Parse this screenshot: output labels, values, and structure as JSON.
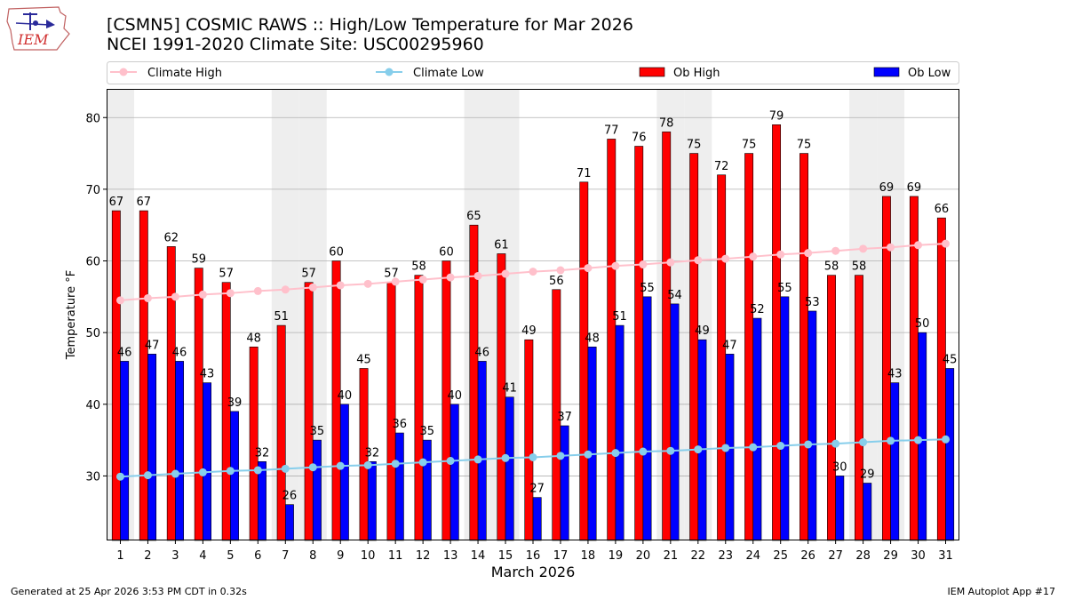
{
  "title": {
    "line1": "[CSMN5] COSMIC RAWS :: High/Low Temperature for Mar 2026",
    "line2": "NCEI 1991-2020 Climate Site: USC00295960"
  },
  "logo": {
    "text": "IEM",
    "icon": "iem-logo-icon"
  },
  "footer": {
    "left": "Generated at 25 Apr 2026 3:53 PM CDT in 0.32s",
    "right": "IEM Autoplot App #17"
  },
  "colors": {
    "ob_high": "#ff0000",
    "ob_low": "#0000ff",
    "climate_high": "#ffc0cb",
    "climate_low": "#87ceeb",
    "weekend_band": "#eeeeee",
    "grid": "#b0b0b0"
  },
  "chart_data": {
    "type": "bar",
    "xlabel": "March 2026",
    "ylabel": "Temperature °F",
    "ylim": [
      21,
      84
    ],
    "yticks": [
      30,
      40,
      50,
      60,
      70,
      80
    ],
    "grid": "horizontal",
    "legend_position": "top",
    "categories": [
      "1",
      "2",
      "3",
      "4",
      "5",
      "6",
      "7",
      "8",
      "9",
      "10",
      "11",
      "12",
      "13",
      "14",
      "15",
      "16",
      "17",
      "18",
      "19",
      "20",
      "21",
      "22",
      "23",
      "24",
      "25",
      "26",
      "27",
      "28",
      "29",
      "30",
      "31"
    ],
    "shaded_days": [
      1,
      7,
      8,
      14,
      15,
      21,
      22,
      28,
      29
    ],
    "series": [
      {
        "name": "Ob High",
        "kind": "bar",
        "values": [
          67,
          67,
          62,
          59,
          57,
          48,
          51,
          57,
          60,
          45,
          57,
          58,
          60,
          65,
          61,
          49,
          56,
          71,
          77,
          76,
          78,
          75,
          72,
          75,
          79,
          75,
          58,
          58,
          69,
          69,
          66
        ]
      },
      {
        "name": "Ob Low",
        "kind": "bar",
        "values": [
          46,
          47,
          46,
          43,
          39,
          32,
          26,
          35,
          40,
          32,
          36,
          35,
          40,
          46,
          41,
          27,
          37,
          48,
          51,
          55,
          54,
          49,
          47,
          52,
          55,
          53,
          30,
          29,
          43,
          50,
          45
        ]
      },
      {
        "name": "Climate High",
        "kind": "line",
        "values": [
          54.5,
          54.8,
          55.0,
          55.3,
          55.5,
          55.8,
          56.0,
          56.3,
          56.6,
          56.8,
          57.1,
          57.4,
          57.7,
          57.9,
          58.2,
          58.5,
          58.7,
          59.0,
          59.3,
          59.5,
          59.8,
          60.1,
          60.3,
          60.6,
          60.9,
          61.1,
          61.4,
          61.7,
          61.9,
          62.2,
          62.4
        ]
      },
      {
        "name": "Climate Low",
        "kind": "line",
        "values": [
          29.9,
          30.1,
          30.3,
          30.5,
          30.7,
          30.8,
          31.0,
          31.2,
          31.4,
          31.5,
          31.7,
          31.9,
          32.1,
          32.3,
          32.5,
          32.6,
          32.8,
          33.0,
          33.2,
          33.4,
          33.5,
          33.7,
          33.9,
          34.0,
          34.2,
          34.4,
          34.5,
          34.7,
          34.9,
          35.0,
          35.1
        ]
      }
    ]
  }
}
